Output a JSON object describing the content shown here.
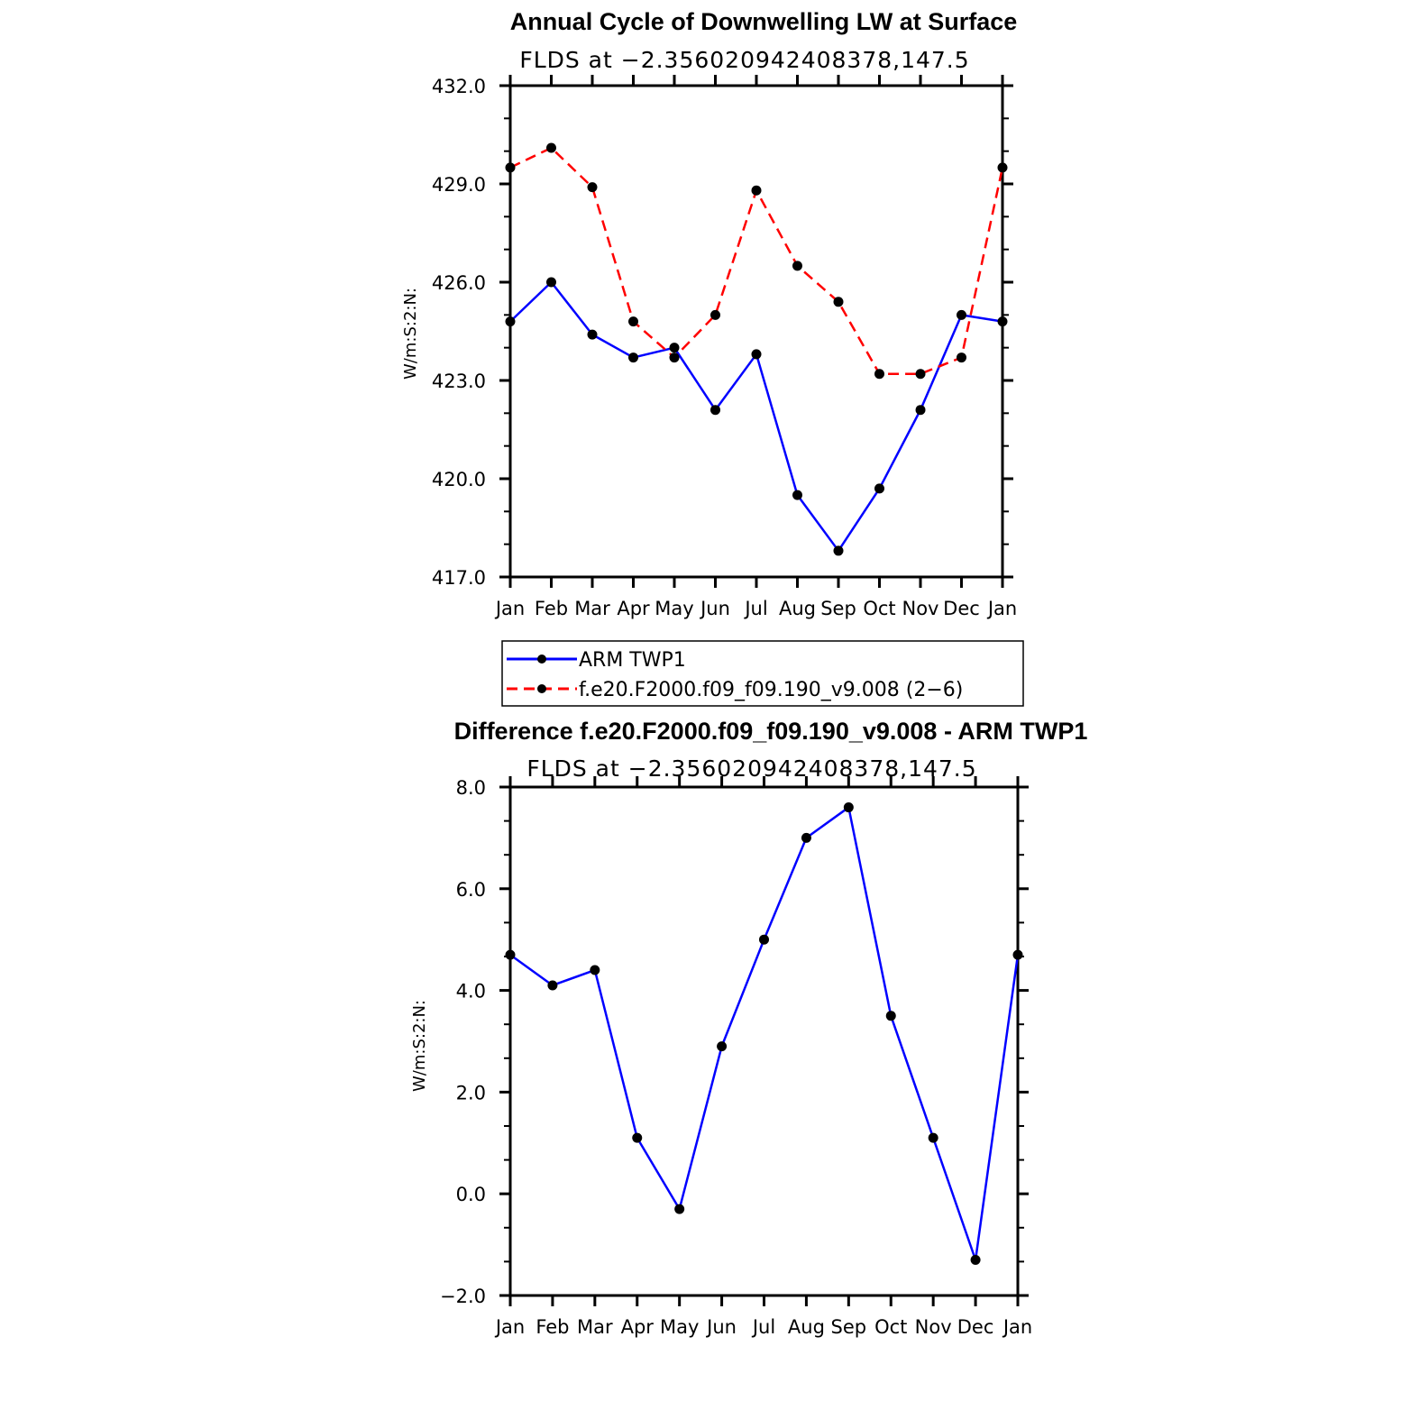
{
  "chart_data": [
    {
      "type": "line",
      "title": "Annual Cycle of Downwelling LW at Surface",
      "subtitle": "FLDS at −2.356020942408378,147.5",
      "xlabel": "",
      "ylabel": "W/m:S:2:N:",
      "categories": [
        "Jan",
        "Feb",
        "Mar",
        "Apr",
        "May",
        "Jun",
        "Jul",
        "Aug",
        "Sep",
        "Oct",
        "Nov",
        "Dec",
        "Jan"
      ],
      "ylim": [
        417.0,
        432.0
      ],
      "yticks": [
        "417.0",
        "420.0",
        "423.0",
        "426.0",
        "429.0",
        "432.0"
      ],
      "series": [
        {
          "name": "ARM TWP1",
          "color": "#0000ff",
          "dash": "solid",
          "values": [
            424.8,
            426.0,
            424.4,
            423.7,
            424.0,
            422.1,
            423.8,
            419.5,
            417.8,
            419.7,
            422.1,
            425.0,
            424.8
          ]
        },
        {
          "name": "f.e20.F2000.f09_f09.190_v9.008 (2−6)",
          "color": "#ff0000",
          "dash": "dashed",
          "values": [
            429.5,
            430.1,
            428.9,
            424.8,
            423.7,
            425.0,
            428.8,
            426.5,
            425.4,
            423.2,
            423.2,
            423.7,
            429.5
          ]
        }
      ],
      "grid": false,
      "legend": "below"
    },
    {
      "type": "line",
      "title": "Difference f.e20.F2000.f09_f09.190_v9.008 - ARM TWP1",
      "subtitle": "FLDS at −2.356020942408378,147.5",
      "xlabel": "",
      "ylabel": "W/m:S:2:N:",
      "categories": [
        "Jan",
        "Feb",
        "Mar",
        "Apr",
        "May",
        "Jun",
        "Jul",
        "Aug",
        "Sep",
        "Oct",
        "Nov",
        "Dec",
        "Jan"
      ],
      "ylim": [
        -2.0,
        8.0
      ],
      "yticks": [
        "−2.0",
        "0.0",
        "2.0",
        "4.0",
        "6.0",
        "8.0"
      ],
      "series": [
        {
          "color": "#0000ff",
          "dash": "solid",
          "values": [
            4.7,
            4.1,
            4.4,
            1.1,
            -0.3,
            2.9,
            5.0,
            7.0,
            7.6,
            3.5,
            1.1,
            -1.3,
            4.7
          ]
        }
      ],
      "grid": false
    }
  ]
}
